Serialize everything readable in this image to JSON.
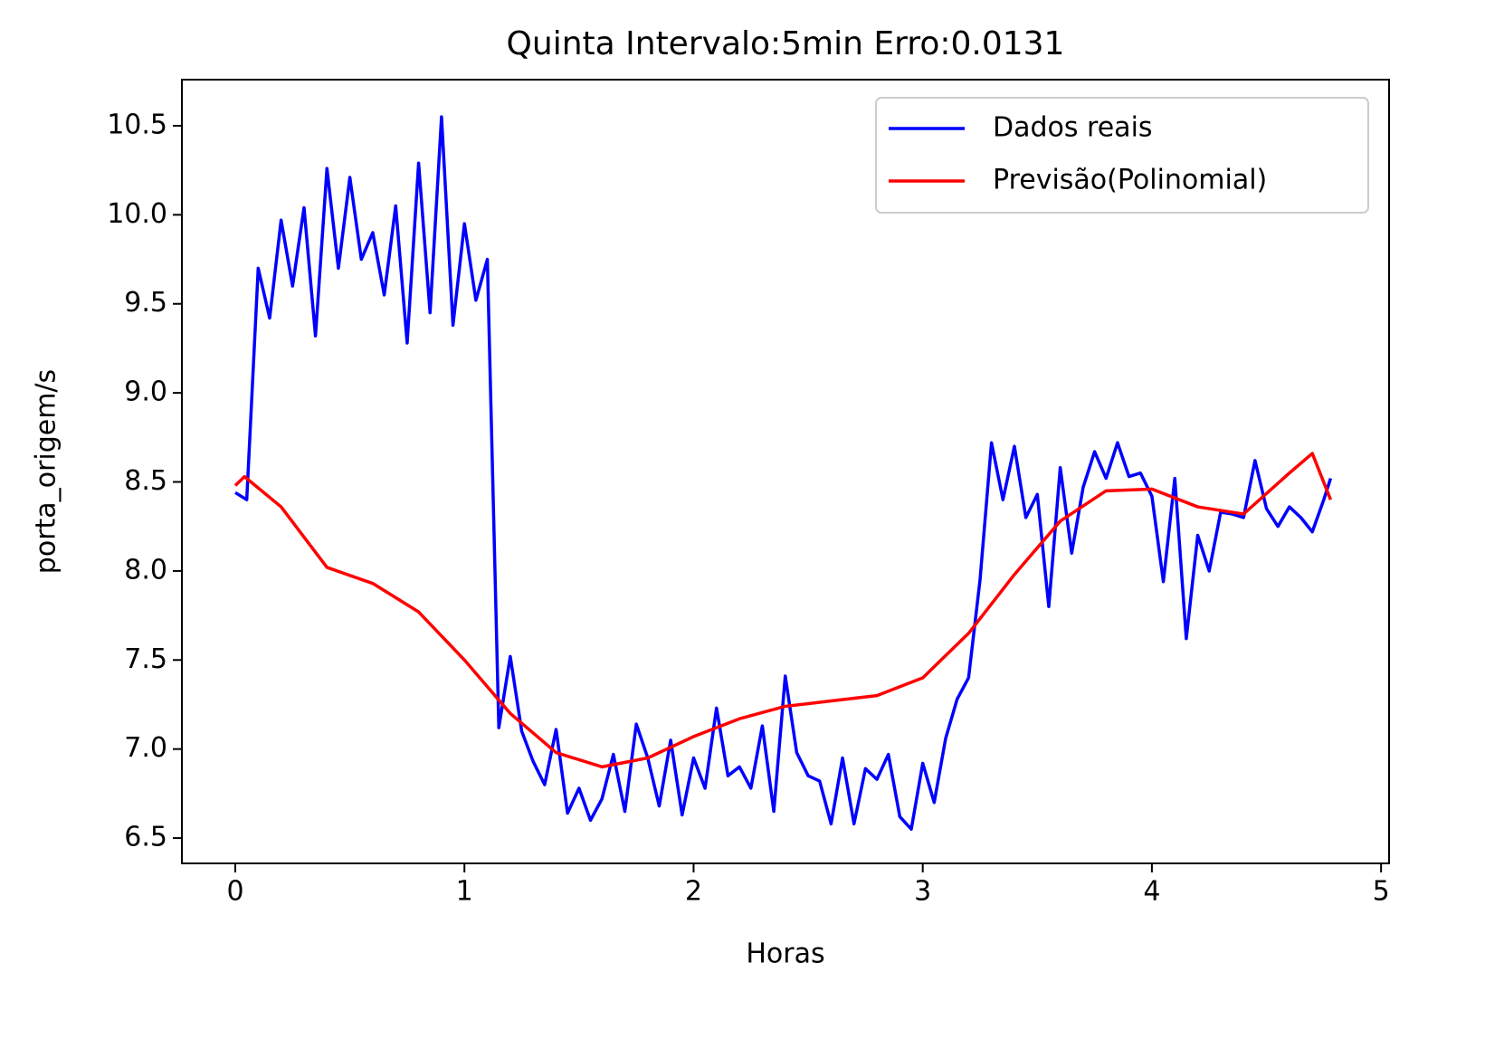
{
  "chart_data": {
    "type": "line",
    "title": "Quinta Intervalo:5min Erro:0.0131",
    "xlabel": "Horas",
    "ylabel": "porta_origem/s",
    "xlim": [
      -0.233,
      5.035
    ],
    "ylim": [
      6.358,
      10.759
    ],
    "xticks": [
      0,
      1,
      2,
      3,
      4,
      5
    ],
    "yticks": [
      6.5,
      {
        "value": 7,
        "label": "7.0"
      },
      7.5,
      {
        "value": 8,
        "label": "8.0"
      },
      8.5,
      {
        "value": 9,
        "label": "9.0"
      },
      9.5,
      {
        "value": 10,
        "label": "10.0"
      },
      10.5
    ],
    "legend": "upper right",
    "series": [
      {
        "name": "Dados reais",
        "color": "#0000ff",
        "x": [
          0,
          0.05,
          0.1,
          0.15,
          0.2,
          0.25,
          0.3,
          0.35,
          0.4,
          0.45,
          0.5,
          0.55,
          0.6,
          0.65,
          0.7,
          0.75,
          0.8,
          0.85,
          0.9,
          0.95,
          1,
          1.05,
          1.1,
          1.15,
          1.2,
          1.25,
          1.3,
          1.35,
          1.4,
          1.45,
          1.5,
          1.55,
          1.6,
          1.65,
          1.7,
          1.75,
          1.8,
          1.85,
          1.9,
          1.95,
          2,
          2.05,
          2.1,
          2.15,
          2.2,
          2.25,
          2.3,
          2.35,
          2.4,
          2.45,
          2.5,
          2.55,
          2.6,
          2.65,
          2.7,
          2.75,
          2.8,
          2.85,
          2.9,
          2.95,
          3,
          3.05,
          3.1,
          3.15,
          3.2,
          3.25,
          3.3,
          3.35,
          3.4,
          3.45,
          3.5,
          3.55,
          3.6,
          3.65,
          3.7,
          3.75,
          3.8,
          3.85,
          3.9,
          3.95,
          4,
          4.05,
          4.1,
          4.15,
          4.2,
          4.25,
          4.3,
          4.35,
          4.4,
          4.45,
          4.5,
          4.55,
          4.6,
          4.65,
          4.7,
          4.75,
          4.78
        ],
        "values": [
          8.44,
          8.4,
          9.7,
          9.42,
          9.97,
          9.6,
          10.04,
          9.32,
          10.26,
          9.7,
          10.21,
          9.75,
          9.9,
          9.55,
          10.05,
          9.28,
          10.29,
          9.45,
          10.55,
          9.38,
          9.95,
          9.52,
          9.75,
          7.12,
          7.52,
          7.1,
          6.93,
          6.8,
          7.11,
          6.64,
          6.78,
          6.6,
          6.72,
          6.97,
          6.65,
          7.14,
          6.95,
          6.68,
          7.05,
          6.63,
          6.95,
          6.78,
          7.23,
          6.85,
          6.9,
          6.78,
          7.13,
          6.65,
          7.41,
          6.98,
          6.85,
          6.82,
          6.58,
          6.95,
          6.58,
          6.89,
          6.83,
          6.97,
          6.62,
          6.55,
          6.92,
          6.7,
          7.06,
          7.28,
          7.4,
          7.95,
          8.72,
          8.4,
          8.7,
          8.3,
          8.43,
          7.8,
          8.58,
          8.1,
          8.47,
          8.67,
          8.52,
          8.72,
          8.53,
          8.55,
          8.42,
          7.94,
          8.52,
          7.62,
          8.2,
          8,
          8.33,
          8.32,
          8.3,
          8.62,
          8.35,
          8.25,
          8.36,
          8.3,
          8.22,
          8.4,
          8.52
        ]
      },
      {
        "name": "Previsão(Polinomial)",
        "color": "#ff0000",
        "x": [
          0,
          0.04,
          0.2,
          0.4,
          0.6,
          0.8,
          1,
          1.2,
          1.4,
          1.6,
          1.8,
          2,
          2.2,
          2.4,
          2.6,
          2.8,
          3,
          3.2,
          3.4,
          3.6,
          3.8,
          4,
          4.2,
          4.4,
          4.6,
          4.7,
          4.78
        ],
        "values": [
          8.48,
          8.53,
          8.36,
          8.02,
          7.93,
          7.77,
          7.5,
          7.2,
          6.98,
          6.9,
          6.95,
          7.07,
          7.17,
          7.24,
          7.27,
          7.3,
          7.4,
          7.65,
          7.98,
          8.28,
          8.45,
          8.46,
          8.36,
          8.32,
          8.55,
          8.66,
          8.4
        ]
      }
    ]
  }
}
